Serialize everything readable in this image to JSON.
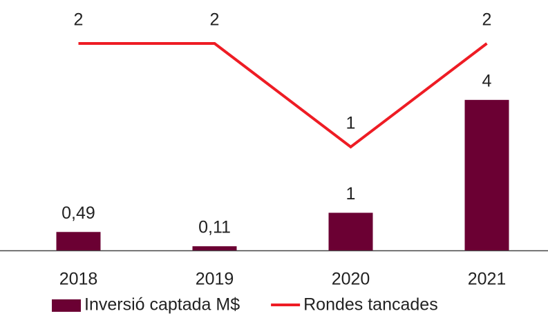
{
  "chart_data": {
    "type": "combo",
    "categories": [
      "2018",
      "2019",
      "2020",
      "2021"
    ],
    "series": [
      {
        "name": "Inversió captada M$",
        "type": "bar",
        "color": "#6b0033",
        "values": [
          0.49,
          0.11,
          1,
          4
        ],
        "value_labels": [
          "0,49",
          "0,11",
          "1",
          "4"
        ]
      },
      {
        "name": "Rondes tancades",
        "type": "line",
        "axis": "y2",
        "color": "#ee1c24",
        "values": [
          2,
          2,
          1,
          2
        ]
      }
    ],
    "ylim": [
      0,
      6.6
    ],
    "y2lim": [
      0,
      2.4
    ],
    "grid": false,
    "legend": "bottom"
  }
}
